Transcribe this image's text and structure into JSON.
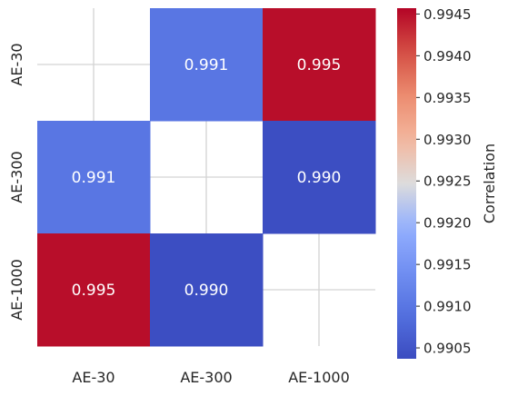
{
  "chart_data": {
    "type": "heatmap",
    "title": "",
    "xlabel": "",
    "ylabel": "",
    "x_categories": [
      "AE-30",
      "AE-300",
      "AE-1000"
    ],
    "y_categories": [
      "AE-30",
      "AE-300",
      "AE-1000"
    ],
    "cells": [
      {
        "row": 0,
        "col": 1,
        "value": 0.991,
        "label": "0.991"
      },
      {
        "row": 0,
        "col": 2,
        "value": 0.9945,
        "label": "0.995"
      },
      {
        "row": 1,
        "col": 0,
        "value": 0.991,
        "label": "0.991"
      },
      {
        "row": 1,
        "col": 2,
        "value": 0.9904,
        "label": "0.990"
      },
      {
        "row": 2,
        "col": 0,
        "value": 0.9945,
        "label": "0.995"
      },
      {
        "row": 2,
        "col": 1,
        "value": 0.9904,
        "label": "0.990"
      }
    ],
    "masked_cells": "diagonal",
    "colormap": "coolwarm",
    "colorbar": {
      "label": "Correlation",
      "range": [
        0.99037,
        0.99457
      ],
      "ticks": [
        0.9905,
        0.991,
        0.9915,
        0.992,
        0.9925,
        0.993,
        0.9935,
        0.994,
        0.9945
      ],
      "tick_labels": [
        "0.9905",
        "0.9910",
        "0.9915",
        "0.9920",
        "0.9925",
        "0.9930",
        "0.9935",
        "0.9940",
        "0.9945"
      ]
    },
    "grid": true,
    "colors": {
      "cool_end": "#3b4cc0",
      "warm_end": "#b40426",
      "annotation_text": "#ffffff",
      "grid": "#d3d3d3"
    }
  }
}
